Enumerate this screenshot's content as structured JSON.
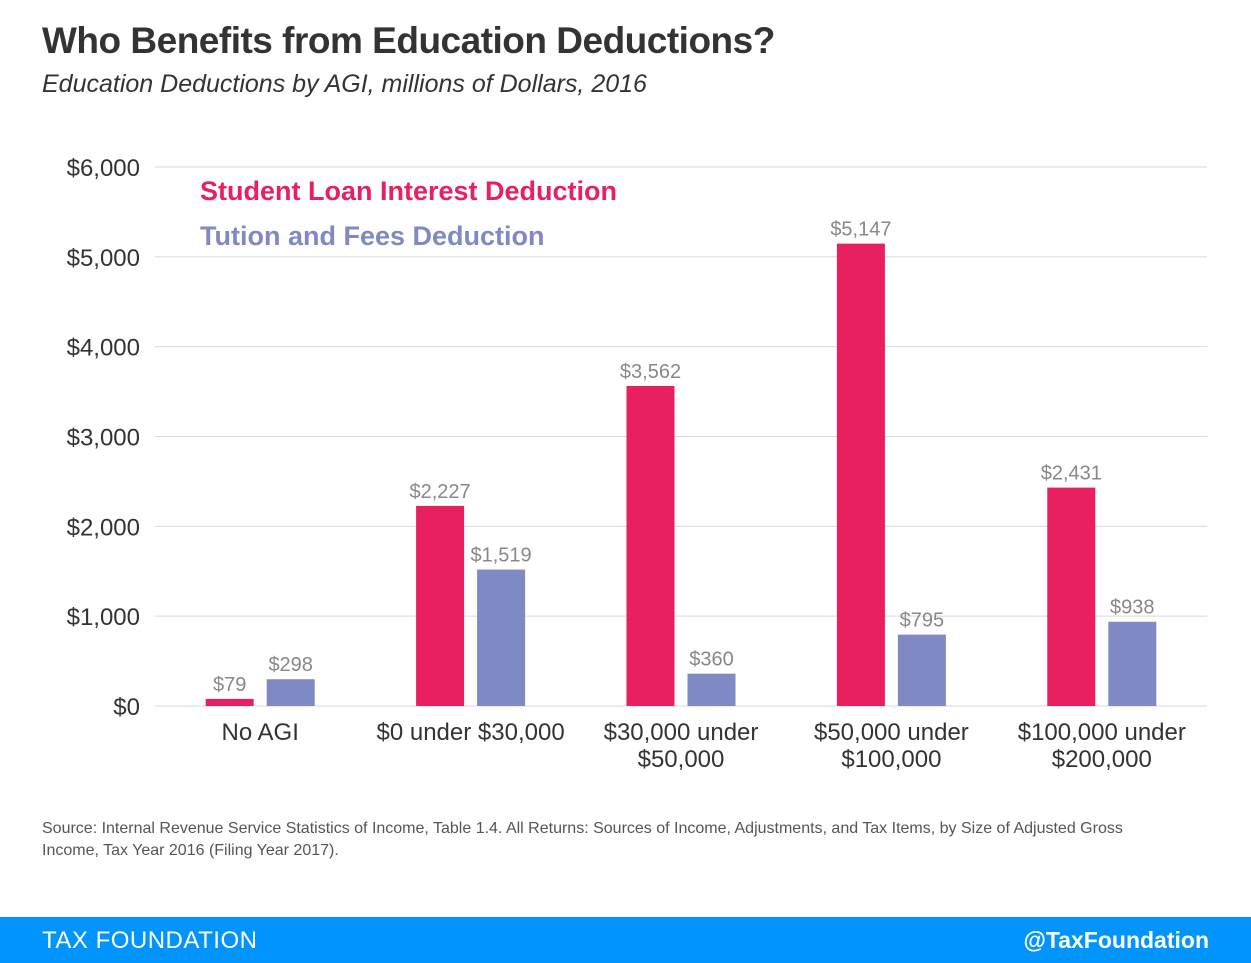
{
  "header": {
    "title": "Who Benefits from Education Deductions?",
    "subtitle": "Education Deductions by AGI, millions of Dollars, 2016"
  },
  "chart_data": {
    "type": "bar",
    "categories": [
      [
        "No AGI"
      ],
      [
        "$0 under $30,000"
      ],
      [
        "$30,000 under",
        "$50,000"
      ],
      [
        "$50,000 under",
        "$100,000"
      ],
      [
        "$100,000 under",
        "$200,000"
      ]
    ],
    "series": [
      {
        "name": "Student Loan Interest Deduction",
        "color": "#e8205f",
        "values": [
          79,
          2227,
          3562,
          5147,
          2431
        ],
        "labels": [
          "$79",
          "$2,227",
          "$3,562",
          "$5,147",
          "$2,431"
        ]
      },
      {
        "name": "Tution and Fees Deduction",
        "color": "#7f89c4",
        "values": [
          298,
          1519,
          360,
          795,
          938
        ],
        "labels": [
          "$298",
          "$1,519",
          "$360",
          "$795",
          "$938"
        ]
      }
    ],
    "ylim": [
      0,
      6000
    ],
    "yticks": [
      0,
      1000,
      2000,
      3000,
      4000,
      5000,
      6000
    ],
    "ytick_labels": [
      "$0",
      "$1,000",
      "$2,000",
      "$3,000",
      "$4,000",
      "$5,000",
      "$6,000"
    ],
    "grid": true,
    "legend_position": "top-left",
    "colors": {
      "gridline": "#d9d9d9",
      "tick_text": "#333333",
      "data_label": "#888888"
    }
  },
  "source": "Source: Internal Revenue Service Statistics of Income, Table 1.4.  All Returns: Sources of Income, Adjustments, and Tax Items, by Size of Adjusted Gross Income, Tax Year 2016 (Filing Year 2017).",
  "footer": {
    "brand": "TAX FOUNDATION",
    "handle": "@TaxFoundation",
    "background": "#0094ff"
  }
}
